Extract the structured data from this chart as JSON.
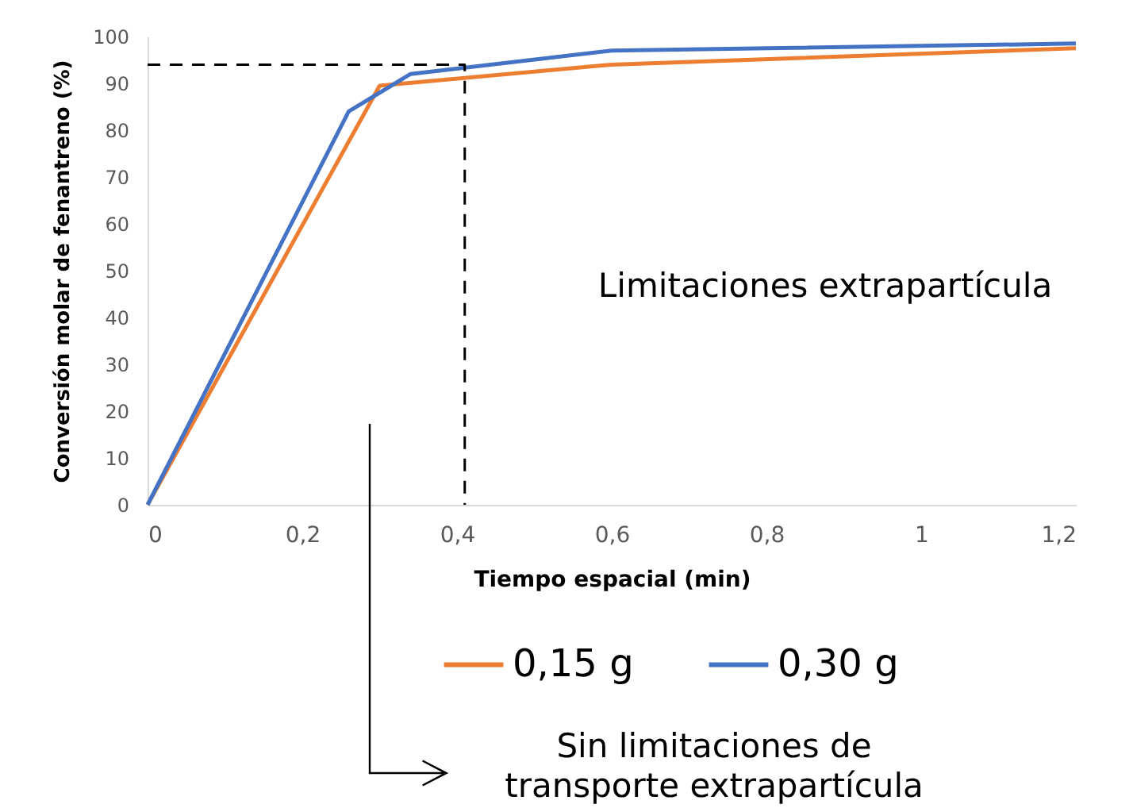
{
  "chart_data": {
    "type": "line",
    "xlabel": "Tiempo espacial (min)",
    "ylabel": "Conversión molar de fenantreno (%)",
    "xlim": [
      0,
      1.2
    ],
    "xticks": [
      0,
      {
        "value": 0.2,
        "label": "0,2"
      },
      {
        "value": 0.4,
        "label": "0,4"
      },
      {
        "value": 0.6,
        "label": "0,6"
      },
      {
        "value": 0.8,
        "label": "0,8"
      },
      1,
      {
        "value": 1.2,
        "label": "1,2"
      }
    ],
    "ylim": [
      0,
      100
    ],
    "yticks": [
      0,
      10,
      20,
      30,
      40,
      50,
      60,
      70,
      80,
      90,
      100
    ],
    "series": [
      {
        "name": "0,15 g",
        "color": "#ed7d31",
        "x": [
          0,
          0.3,
          0.6,
          1.2
        ],
        "values": [
          0,
          89.5,
          94,
          97.5
        ]
      },
      {
        "name": "0,30 g",
        "color": "#4472c4",
        "x": [
          0,
          0.26,
          0.34,
          0.6,
          1.2
        ],
        "values": [
          0,
          84,
          92,
          97,
          98.5
        ]
      },
      {
        "type": "line",
        "color": "#000000",
        "line_style": "dashed",
        "x": [
          0,
          0.41,
          0.41
        ],
        "values": [
          94,
          94,
          0
        ]
      }
    ],
    "legend": "bottom",
    "grid": false,
    "annotations": [
      "Limitaciones extrapartícula",
      "Sin limitaciones de transporte extrapartícula"
    ]
  }
}
